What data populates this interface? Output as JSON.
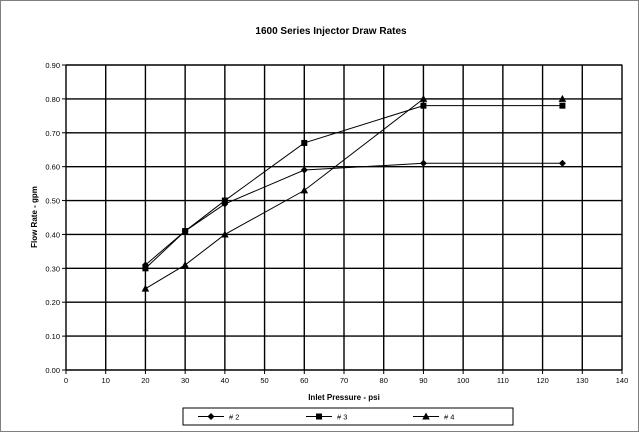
{
  "chart_data": {
    "type": "line",
    "title": "1600 Series Injector Draw Rates",
    "xlabel": "Inlet Pressure - psi",
    "ylabel": "Flow Rate - gpm",
    "xlim": [
      0,
      140
    ],
    "ylim": [
      0,
      0.9
    ],
    "x_ticks": [
      "0",
      "10",
      "20",
      "30",
      "40",
      "50",
      "60",
      "70",
      "80",
      "90",
      "100",
      "110",
      "120",
      "130",
      "140"
    ],
    "y_ticks": [
      "0.00",
      "0.10",
      "0.20",
      "0.30",
      "0.40",
      "0.50",
      "0.60",
      "0.70",
      "0.80",
      "0.90"
    ],
    "grid": true,
    "legend_position": "bottom",
    "series": [
      {
        "name": "# 2",
        "marker": "diamond",
        "color": "#000000",
        "x": [
          20,
          30,
          40,
          60,
          90,
          125
        ],
        "y": [
          0.31,
          0.41,
          0.49,
          0.59,
          0.61,
          0.61
        ]
      },
      {
        "name": "# 3",
        "marker": "square",
        "color": "#000000",
        "x": [
          20,
          30,
          40,
          60,
          90,
          125
        ],
        "y": [
          0.3,
          0.41,
          0.5,
          0.67,
          0.78,
          0.78
        ]
      },
      {
        "name": "# 4",
        "marker": "triangle",
        "color": "#000000",
        "x": [
          20,
          30,
          40,
          60,
          90,
          125
        ],
        "y": [
          0.24,
          0.31,
          0.4,
          0.53,
          0.8,
          0.8
        ]
      }
    ]
  }
}
